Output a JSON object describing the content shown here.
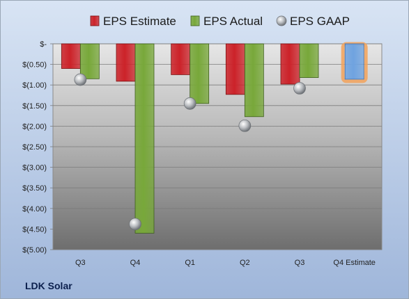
{
  "company": "LDK Solar",
  "colors": {
    "estimate": "#cc2229",
    "actual": "#78a83a",
    "gaap": "#b9bcc0",
    "estimate_bar": "#6fa3e0",
    "highlight": "#f2a25a"
  },
  "chart_data": {
    "type": "bar",
    "title": "",
    "xlabel": "",
    "ylabel": "",
    "categories": [
      "Q3",
      "Q4",
      "Q1",
      "Q2",
      "Q3",
      "Q4 Estimate"
    ],
    "ylim": [
      -5.0,
      0
    ],
    "yticks": [
      0,
      -0.5,
      -1.0,
      -1.5,
      -2.0,
      -2.5,
      -3.0,
      -3.5,
      -4.0,
      -4.5,
      -5.0
    ],
    "ytick_labels": [
      "$-",
      "$(0.50)",
      "$(1.00)",
      "$(1.50)",
      "$(2.00)",
      "$(2.50)",
      "$(3.00)",
      "$(3.50)",
      "$(4.00)",
      "$(4.50)",
      "$(5.00)"
    ],
    "grid": true,
    "legend": "top",
    "series": [
      {
        "name": "EPS Estimate",
        "kind": "bar",
        "values": [
          -0.6,
          -0.91,
          -0.75,
          -1.23,
          -0.98,
          -0.86
        ]
      },
      {
        "name": "EPS Actual",
        "kind": "bar",
        "values": [
          -0.85,
          -4.6,
          -1.45,
          -1.77,
          -0.82,
          null
        ]
      },
      {
        "name": "EPS GAAP",
        "kind": "point",
        "values": [
          -0.87,
          -4.38,
          -1.45,
          -1.99,
          -1.08,
          null
        ]
      }
    ]
  }
}
